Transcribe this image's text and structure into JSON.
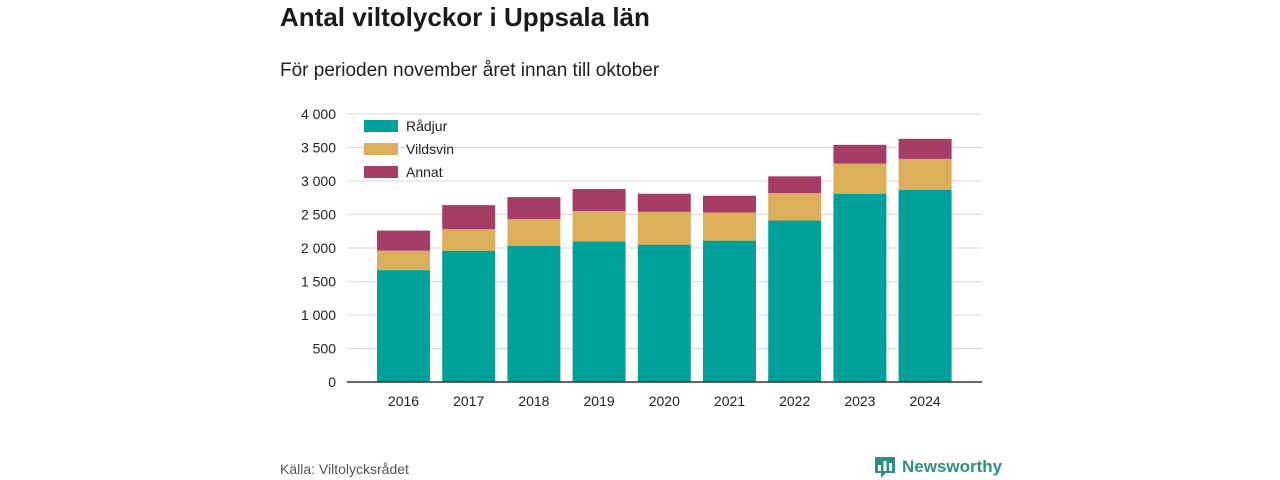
{
  "title": "Antal viltolyckor i Uppsala län",
  "subtitle": "För perioden november året innan till oktober",
  "source": "Källa: Viltolycksrådet",
  "brand": {
    "name": "Newsworthy",
    "icon": "bar-chart-logo-icon",
    "color": "#2e8f84"
  },
  "chart_data": {
    "type": "bar",
    "stacked": true,
    "categories": [
      "2016",
      "2017",
      "2018",
      "2019",
      "2020",
      "2021",
      "2022",
      "2023",
      "2024"
    ],
    "series": [
      {
        "name": "Rådjur",
        "color": "#00a19a",
        "values": [
          1670,
          1960,
          2030,
          2100,
          2050,
          2110,
          2410,
          2810,
          2870
        ]
      },
      {
        "name": "Vildsvin",
        "color": "#dcaf5a",
        "values": [
          290,
          320,
          400,
          450,
          490,
          420,
          410,
          450,
          460
        ]
      },
      {
        "name": "Annat",
        "color": "#a63d66",
        "values": [
          300,
          360,
          330,
          330,
          270,
          250,
          250,
          280,
          300
        ]
      }
    ],
    "y_ticks": [
      "0",
      "500",
      "1 000",
      "1 500",
      "2 000",
      "2 500",
      "3 000",
      "3 500",
      "4 000"
    ],
    "ylim": [
      0,
      4000
    ],
    "grid": true,
    "legend_position": "top-left"
  }
}
